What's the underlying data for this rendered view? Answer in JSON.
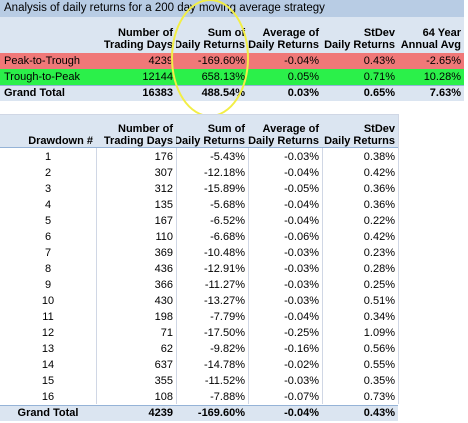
{
  "colors": {
    "title_band": "#b8cce4",
    "header_band": "#dbe5f1",
    "row_red": "#f07878",
    "row_green": "#2bf04a",
    "total_band": "#dbe5f1",
    "grid": "#d0d7e5",
    "highlight_circle": "#f2ee46"
  },
  "summary": {
    "title": "Analysis of daily returns for a 200 day moving average strategy",
    "headers": {
      "trading_days": [
        "Number of",
        "Trading Days"
      ],
      "sum": [
        "Sum of",
        "Daily Returns"
      ],
      "avg": [
        "Average of",
        "Daily Returns"
      ],
      "stdev": [
        "StDev",
        "Daily Returns"
      ],
      "annual": [
        "64 Year",
        "Annual Avg"
      ]
    },
    "rows": [
      {
        "label": "Peak-to-Trough",
        "days": "4239",
        "sum": "-169.60%",
        "avg": "-0.04%",
        "stdev": "0.43%",
        "annual": "-2.65%"
      },
      {
        "label": "Trough-to-Peak",
        "days": "12144",
        "sum": "658.13%",
        "avg": "0.05%",
        "stdev": "0.71%",
        "annual": "10.28%"
      }
    ],
    "total": {
      "label": "Grand Total",
      "days": "16383",
      "sum": "488.54%",
      "avg": "0.03%",
      "stdev": "0.65%",
      "annual": "7.63%"
    }
  },
  "drawdowns": {
    "headers": {
      "drawdown": "Drawdown #",
      "trading_days": [
        "Number of",
        "Trading Days"
      ],
      "sum": [
        "Sum of",
        "Daily Returns"
      ],
      "avg": [
        "Average of",
        "Daily Returns"
      ],
      "stdev": [
        "StDev",
        "Daily Returns"
      ]
    },
    "rows": [
      {
        "n": "1",
        "days": "176",
        "sum": "-5.43%",
        "avg": "-0.03%",
        "stdev": "0.38%"
      },
      {
        "n": "2",
        "days": "307",
        "sum": "-12.18%",
        "avg": "-0.04%",
        "stdev": "0.42%"
      },
      {
        "n": "3",
        "days": "312",
        "sum": "-15.89%",
        "avg": "-0.05%",
        "stdev": "0.36%"
      },
      {
        "n": "4",
        "days": "135",
        "sum": "-5.68%",
        "avg": "-0.04%",
        "stdev": "0.36%"
      },
      {
        "n": "5",
        "days": "167",
        "sum": "-6.52%",
        "avg": "-0.04%",
        "stdev": "0.22%"
      },
      {
        "n": "6",
        "days": "110",
        "sum": "-6.68%",
        "avg": "-0.06%",
        "stdev": "0.42%"
      },
      {
        "n": "7",
        "days": "369",
        "sum": "-10.48%",
        "avg": "-0.03%",
        "stdev": "0.23%"
      },
      {
        "n": "8",
        "days": "436",
        "sum": "-12.91%",
        "avg": "-0.03%",
        "stdev": "0.28%"
      },
      {
        "n": "9",
        "days": "366",
        "sum": "-11.27%",
        "avg": "-0.03%",
        "stdev": "0.25%"
      },
      {
        "n": "10",
        "days": "430",
        "sum": "-13.27%",
        "avg": "-0.03%",
        "stdev": "0.51%"
      },
      {
        "n": "11",
        "days": "198",
        "sum": "-7.79%",
        "avg": "-0.04%",
        "stdev": "0.34%"
      },
      {
        "n": "12",
        "days": "71",
        "sum": "-17.50%",
        "avg": "-0.25%",
        "stdev": "1.09%"
      },
      {
        "n": "13",
        "days": "62",
        "sum": "-9.82%",
        "avg": "-0.16%",
        "stdev": "0.56%"
      },
      {
        "n": "14",
        "days": "637",
        "sum": "-14.78%",
        "avg": "-0.02%",
        "stdev": "0.55%"
      },
      {
        "n": "15",
        "days": "355",
        "sum": "-11.52%",
        "avg": "-0.03%",
        "stdev": "0.35%"
      },
      {
        "n": "16",
        "days": "108",
        "sum": "-7.88%",
        "avg": "-0.07%",
        "stdev": "0.73%"
      }
    ],
    "total": {
      "label": "Grand Total",
      "days": "4239",
      "sum": "-169.60%",
      "avg": "-0.04%",
      "stdev": "0.43%"
    }
  }
}
